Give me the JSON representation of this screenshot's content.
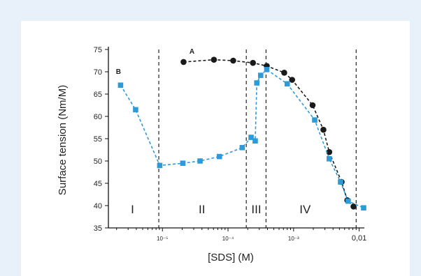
{
  "chart_data": {
    "type": "scatter",
    "xlabel": "[SDS] (M)",
    "ylabel": "Surface tension (Nm/M)",
    "xscale": "log",
    "xlim": [
      1.5e-06,
      0.012
    ],
    "ylim": [
      35,
      75
    ],
    "yticks": [
      35,
      40,
      45,
      50,
      55,
      60,
      65,
      70,
      75
    ],
    "xticks": [
      {
        "value": 1e-05,
        "label": "10⁻⁵"
      },
      {
        "value": 0.0001,
        "label": "10⁻⁴"
      },
      {
        "value": 0.001,
        "label": "10⁻³"
      },
      {
        "value": 0.01,
        "label": "0,01"
      }
    ],
    "region_boundaries": [
      8.8e-06,
      0.00019,
      0.00038,
      0.009
    ],
    "regions": [
      {
        "label": "I",
        "x": 3.5e-06
      },
      {
        "label": "II",
        "x": 4e-05
      },
      {
        "label": "III",
        "x": 0.00027
      },
      {
        "label": "IV",
        "x": 0.0015
      }
    ],
    "series": [
      {
        "name": "A",
        "color": "#1a1a1a",
        "marker": "circle",
        "x": [
          2.1e-05,
          6.1e-05,
          0.00012,
          0.00024,
          0.00039,
          0.00072,
          0.00095,
          0.00195,
          0.00285,
          0.0035,
          0.0054,
          0.0066,
          0.0082
        ],
        "y": [
          72.2,
          72.7,
          72.5,
          72.0,
          71.3,
          69.8,
          68.2,
          62.5,
          57.0,
          52.0,
          45.3,
          41.2,
          39.8
        ]
      },
      {
        "name": "B",
        "color": "#2e9bd8",
        "marker": "square",
        "x": [
          2.3e-06,
          3.9e-06,
          9.1e-06,
          2.05e-05,
          3.75e-05,
          7.4e-05,
          0.000165,
          0.000225,
          0.00026,
          0.000275,
          0.000315,
          0.00039,
          0.0008,
          0.0021,
          0.0035,
          0.0052,
          0.0068,
          0.0117
        ],
        "y": [
          67.0,
          61.5,
          49.0,
          49.5,
          50.0,
          51.0,
          53.0,
          55.3,
          54.5,
          67.5,
          69.2,
          70.5,
          67.3,
          59.2,
          50.5,
          45.3,
          41.0,
          39.5
        ]
      }
    ]
  }
}
